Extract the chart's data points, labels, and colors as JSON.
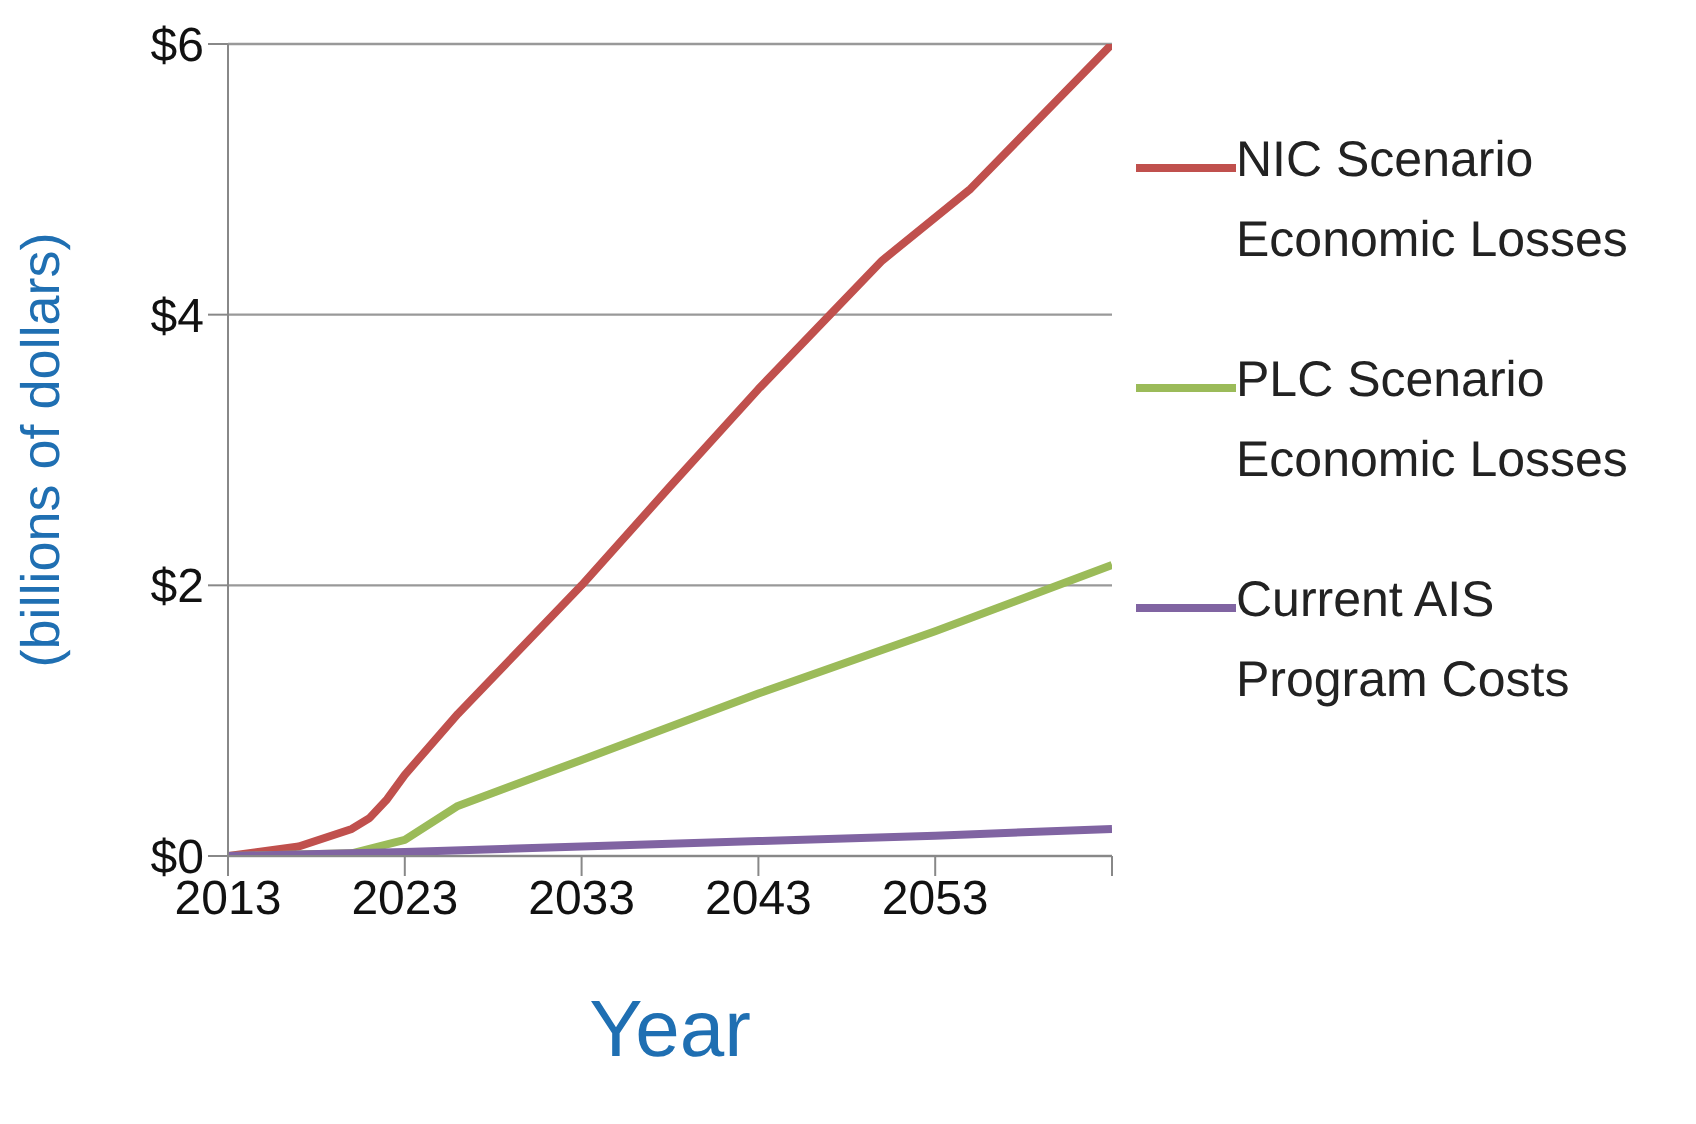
{
  "chart_data": {
    "type": "line",
    "xlabel": "Year",
    "ylabel": "(billions of dollars)",
    "xlim": [
      2013,
      2063
    ],
    "xticks": [
      2013,
      2023,
      2033,
      2043,
      2053,
      {
        "value": 2063,
        "label": null
      }
    ],
    "ylim": [
      0,
      6
    ],
    "yticks": [
      {
        "value": 0,
        "label": "$0"
      },
      {
        "value": 2,
        "label": "$2"
      },
      {
        "value": 4,
        "label": "$4"
      },
      {
        "value": 6,
        "label": "$6"
      }
    ],
    "grid": "y",
    "legend": "right",
    "marker": "none",
    "line_style": "solid",
    "series": [
      {
        "name": "NIC Scenario Economic Losses",
        "color": "#c0504d",
        "x": [
          2013,
          2017,
          2020,
          2021,
          2022,
          2023,
          2026,
          2033,
          2038,
          2043,
          2050,
          2055,
          2063
        ],
        "values": [
          0,
          0.07,
          0.2,
          0.28,
          0.42,
          0.6,
          1.05,
          2.0,
          2.73,
          3.45,
          4.4,
          4.93,
          6.0
        ]
      },
      {
        "name": "PLC Scenario Economic Losses",
        "color": "#9bbb59",
        "x": [
          2013,
          2020,
          2023,
          2026,
          2033,
          2043,
          2053,
          2063
        ],
        "values": [
          0,
          0.02,
          0.12,
          0.37,
          0.71,
          1.2,
          1.66,
          2.15
        ]
      },
      {
        "name": "Current AIS Program Costs",
        "color": "#8064a2",
        "x": [
          2013,
          2023,
          2033,
          2043,
          2053,
          2063
        ],
        "values": [
          0,
          0.03,
          0.07,
          0.11,
          0.15,
          0.2
        ]
      }
    ]
  }
}
